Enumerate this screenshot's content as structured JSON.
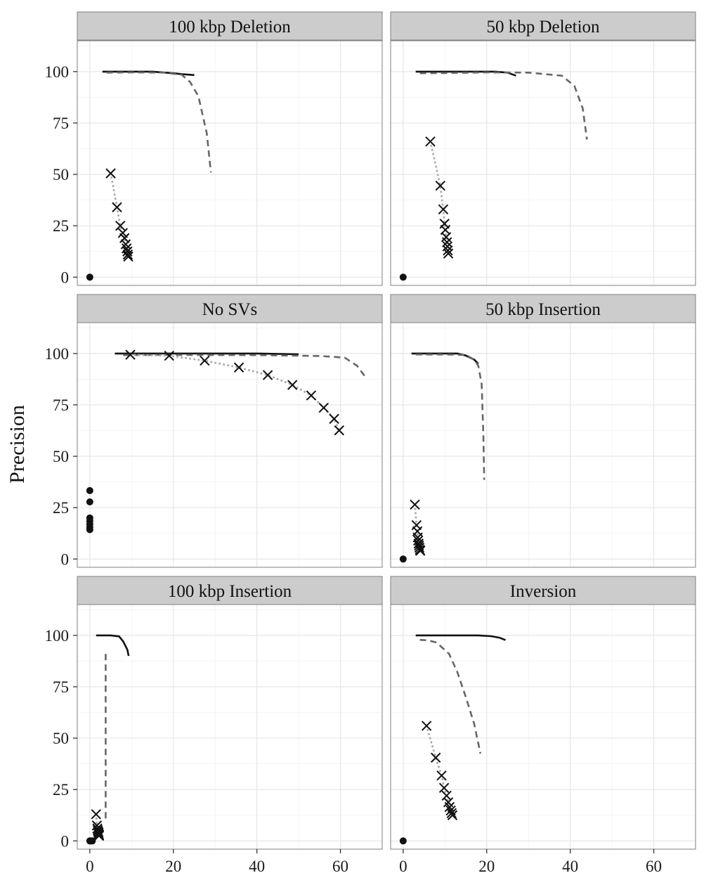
{
  "chart_data": {
    "type": "line",
    "layout": "facet-grid 3x2",
    "xlabel": "",
    "ylabel": "Precision",
    "xlim": [
      -3,
      70
    ],
    "ylim": [
      -4,
      115
    ],
    "x_ticks": [
      0,
      20,
      40,
      60
    ],
    "y_ticks": [
      0,
      25,
      50,
      75,
      100
    ],
    "grid": true,
    "legend": "none",
    "series_styles": {
      "solid": {
        "color": "#111111",
        "dash": "none",
        "marker": "none"
      },
      "dashed": {
        "color": "#666666",
        "dash": "dashed",
        "marker": "none"
      },
      "dotted_x": {
        "color": "#aaaaaa",
        "dash": "dotted",
        "marker": "x"
      },
      "point": {
        "color": "#111111",
        "dash": "none",
        "marker": "circle"
      }
    },
    "panels": [
      {
        "title": "100 kbp Deletion",
        "series": [
          {
            "style": "solid",
            "x": [
              3,
              8,
              15,
              20,
              22,
              25
            ],
            "y": [
              100,
              100,
              100,
              99.2,
              98.8,
              98.3
            ]
          },
          {
            "style": "dashed",
            "x": [
              4,
              10,
              18,
              22,
              24,
              26,
              28,
              29
            ],
            "y": [
              99.5,
              99.6,
              99.5,
              98.5,
              95,
              88,
              70,
              51
            ]
          },
          {
            "style": "dotted_x",
            "x": [
              5,
              6.5,
              7.3,
              7.9,
              8.3,
              8.6,
              8.8,
              9,
              9.1,
              9.2
            ],
            "y": [
              50.5,
              34,
              25,
              21.5,
              19,
              16,
              14,
              12.5,
              11,
              10
            ]
          },
          {
            "style": "point",
            "x": [
              0
            ],
            "y": [
              0
            ]
          }
        ]
      },
      {
        "title": "50 kbp Deletion",
        "series": [
          {
            "style": "solid",
            "x": [
              3,
              10,
              18,
              22,
              25,
              27
            ],
            "y": [
              100,
              100,
              100,
              100,
              99.5,
              98
            ]
          },
          {
            "style": "dashed",
            "x": [
              4,
              10,
              20,
              30,
              38,
              41,
              43,
              44
            ],
            "y": [
              99.2,
              99.3,
              99.6,
              99.5,
              98,
              93,
              82,
              67
            ]
          },
          {
            "style": "dotted_x",
            "x": [
              6.5,
              8.9,
              9.6,
              9.9,
              10.1,
              10.3,
              10.5,
              10.6,
              10.7,
              10.8
            ],
            "y": [
              66,
              44.5,
              33,
              26,
              23,
              19.5,
              17,
              15,
              13,
              11.5
            ]
          },
          {
            "style": "point",
            "x": [
              0
            ],
            "y": [
              0
            ]
          }
        ]
      },
      {
        "title": "No SVs",
        "series": [
          {
            "style": "solid",
            "x": [
              6,
              15,
              30,
              40,
              50
            ],
            "y": [
              100,
              100,
              100,
              100,
              99.6
            ]
          },
          {
            "style": "dashed",
            "x": [
              8,
              20,
              40,
              55,
              61,
              64,
              66
            ],
            "y": [
              99.2,
              99.3,
              99.2,
              98.8,
              98,
              94,
              88.5
            ]
          },
          {
            "style": "dotted_x",
            "x": [
              9.7,
              19,
              27.5,
              35.7,
              42.6,
              48.5,
              53,
              56,
              58.5,
              59.7
            ],
            "y": [
              99.4,
              98.9,
              96.5,
              93.2,
              89.5,
              84.7,
              79.6,
              73.6,
              68.2,
              62.6
            ]
          },
          {
            "style": "point",
            "x": [
              0,
              0,
              0,
              0,
              0,
              0,
              0
            ],
            "y": [
              33.3,
              27.8,
              20,
              18.5,
              17,
              15.5,
              14.3
            ]
          }
        ]
      },
      {
        "title": "50 kbp Insertion",
        "series": [
          {
            "style": "solid",
            "x": [
              2,
              8,
              13,
              15,
              17,
              18
            ],
            "y": [
              100,
              100,
              100,
              99,
              97,
              95
            ]
          },
          {
            "style": "dashed",
            "x": [
              3,
              10,
              15,
              17,
              18,
              18.8,
              19.2,
              19.4
            ],
            "y": [
              99.5,
              99.5,
              99.3,
              97,
              94,
              85,
              60,
              38.5
            ]
          },
          {
            "style": "dotted_x",
            "x": [
              2.8,
              3.2,
              3.4,
              3.5,
              3.6,
              3.7,
              3.8,
              3.9,
              4,
              4.1
            ],
            "y": [
              26.5,
              16.5,
              13.5,
              10.5,
              9,
              7.5,
              6.5,
              5.5,
              4.5,
              4
            ]
          },
          {
            "style": "point",
            "x": [
              0
            ],
            "y": [
              0
            ]
          }
        ]
      },
      {
        "title": "100 kbp Insertion",
        "series": [
          {
            "style": "solid",
            "x": [
              1.5,
              5,
              7,
              8,
              9,
              9.3
            ],
            "y": [
              100,
              100,
              99.5,
              97,
              93,
              90
            ]
          },
          {
            "style": "dashed",
            "x": [
              3.8,
              3.8,
              3.8,
              3.8
            ],
            "y": [
              91,
              60,
              30,
              9
            ]
          },
          {
            "style": "dotted_x",
            "x": [
              1.5,
              1.7,
              1.8,
              1.9,
              2,
              2.1,
              2.1,
              2.2,
              2.2,
              2.2
            ],
            "y": [
              13,
              7.5,
              6,
              5.2,
              4.5,
              4,
              3.5,
              3,
              2.7,
              2.5
            ]
          },
          {
            "style": "point",
            "x": [
              0,
              0.3,
              0.6
            ],
            "y": [
              0,
              0,
              0
            ]
          }
        ]
      },
      {
        "title": "Inversion",
        "series": [
          {
            "style": "solid",
            "x": [
              3,
              10,
              18,
              21,
              23,
              24.5
            ],
            "y": [
              100,
              100,
              100,
              99.6,
              98.9,
              97.7
            ]
          },
          {
            "style": "dashed",
            "x": [
              4,
              6,
              8,
              11,
              13,
              15,
              17,
              18.5
            ],
            "y": [
              97.8,
              97.6,
              96.5,
              91,
              82,
              70,
              57,
              42.5
            ]
          },
          {
            "style": "dotted_x",
            "x": [
              5.6,
              7.8,
              9.2,
              9.8,
              10.4,
              10.8,
              11.1,
              11.4,
              11.6,
              11.8
            ],
            "y": [
              56,
              40.5,
              31.8,
              25.8,
              22,
              18.8,
              16.5,
              14.8,
              13.5,
              12.5
            ]
          },
          {
            "style": "point",
            "x": [
              0
            ],
            "y": [
              0
            ]
          }
        ]
      }
    ]
  }
}
